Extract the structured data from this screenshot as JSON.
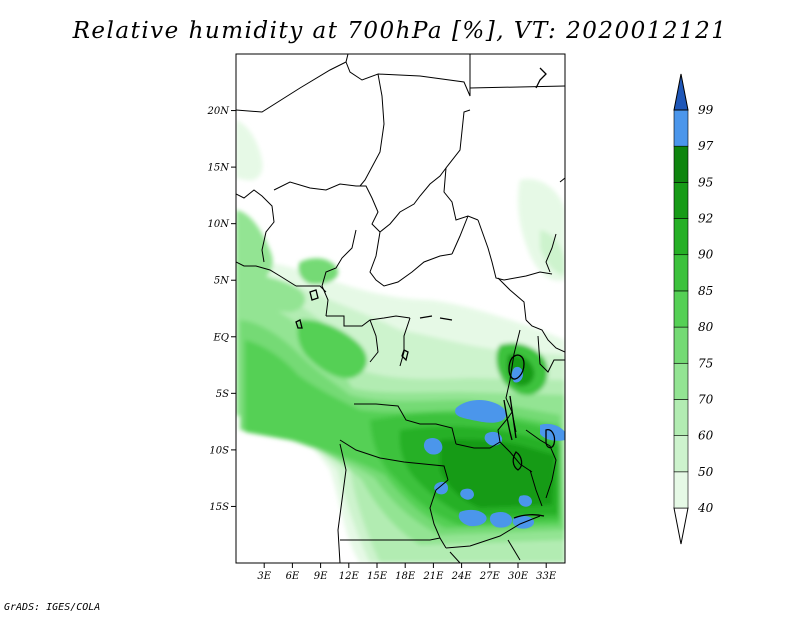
{
  "title": "Relative humidity at 700hPa [%], VT: 2020012121",
  "footer": "GrADS: IGES/COLA",
  "map": {
    "lon_range": [
      0,
      35
    ],
    "lat_range": [
      -20,
      25
    ],
    "lat_ticks": [
      {
        "value": 20,
        "label": "20N"
      },
      {
        "value": 15,
        "label": "15N"
      },
      {
        "value": 10,
        "label": "10N"
      },
      {
        "value": 5,
        "label": "5N"
      },
      {
        "value": 0,
        "label": "EQ"
      },
      {
        "value": -5,
        "label": "5S"
      },
      {
        "value": -10,
        "label": "10S"
      },
      {
        "value": -15,
        "label": "15S"
      }
    ],
    "lon_ticks": [
      {
        "value": 3,
        "label": "3E"
      },
      {
        "value": 6,
        "label": "6E"
      },
      {
        "value": 9,
        "label": "9E"
      },
      {
        "value": 12,
        "label": "12E"
      },
      {
        "value": 15,
        "label": "15E"
      },
      {
        "value": 18,
        "label": "18E"
      },
      {
        "value": 21,
        "label": "21E"
      },
      {
        "value": 24,
        "label": "24E"
      },
      {
        "value": 27,
        "label": "27E"
      },
      {
        "value": 30,
        "label": "30E"
      },
      {
        "value": 33,
        "label": "33E"
      }
    ]
  },
  "colorbar": {
    "levels": [
      {
        "label": "40",
        "color": "#e6f9e6"
      },
      {
        "label": "50",
        "color": "#cdf3cd"
      },
      {
        "label": "60",
        "color": "#b2ecb2"
      },
      {
        "label": "70",
        "color": "#93e493"
      },
      {
        "label": "75",
        "color": "#74da74"
      },
      {
        "label": "80",
        "color": "#55d055"
      },
      {
        "label": "85",
        "color": "#3cc23c"
      },
      {
        "label": "90",
        "color": "#26b026"
      },
      {
        "label": "92",
        "color": "#179b17"
      },
      {
        "label": "95",
        "color": "#0e850e"
      },
      {
        "label": "97",
        "color": "#4b96eb"
      },
      {
        "label": "99",
        "color": "#2a6fd6"
      }
    ],
    "top_color": "#1f57b8",
    "bottom_color": "#ffffff"
  }
}
